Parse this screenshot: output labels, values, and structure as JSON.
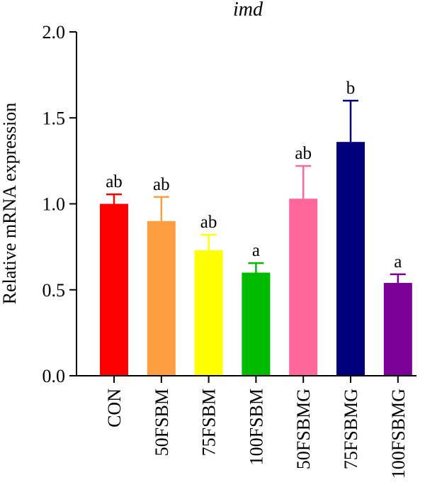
{
  "chart_data": {
    "type": "bar",
    "title": "imd",
    "xlabel": "",
    "ylabel": "Relative mRNA expression",
    "ylim": [
      0,
      2.0
    ],
    "yticks": [
      "0.0",
      "0.5",
      "1.0",
      "1.5",
      "2.0"
    ],
    "grid": false,
    "categories": [
      "CON",
      "50FSBM",
      "75FSBM",
      "100FSBM",
      "50FSBMG",
      "75FSBMG",
      "100FSBMG"
    ],
    "values": [
      1.0,
      0.9,
      0.73,
      0.6,
      1.03,
      1.36,
      0.54
    ],
    "errors": [
      0.055,
      0.14,
      0.09,
      0.055,
      0.19,
      0.24,
      0.05
    ],
    "significance": [
      "ab",
      "ab",
      "ab",
      "a",
      "ab",
      "b",
      "a"
    ],
    "colors": [
      "#ff0000",
      "#ff9e40",
      "#ffff00",
      "#00bb00",
      "#ff6699",
      "#00007a",
      "#7a0099"
    ]
  }
}
